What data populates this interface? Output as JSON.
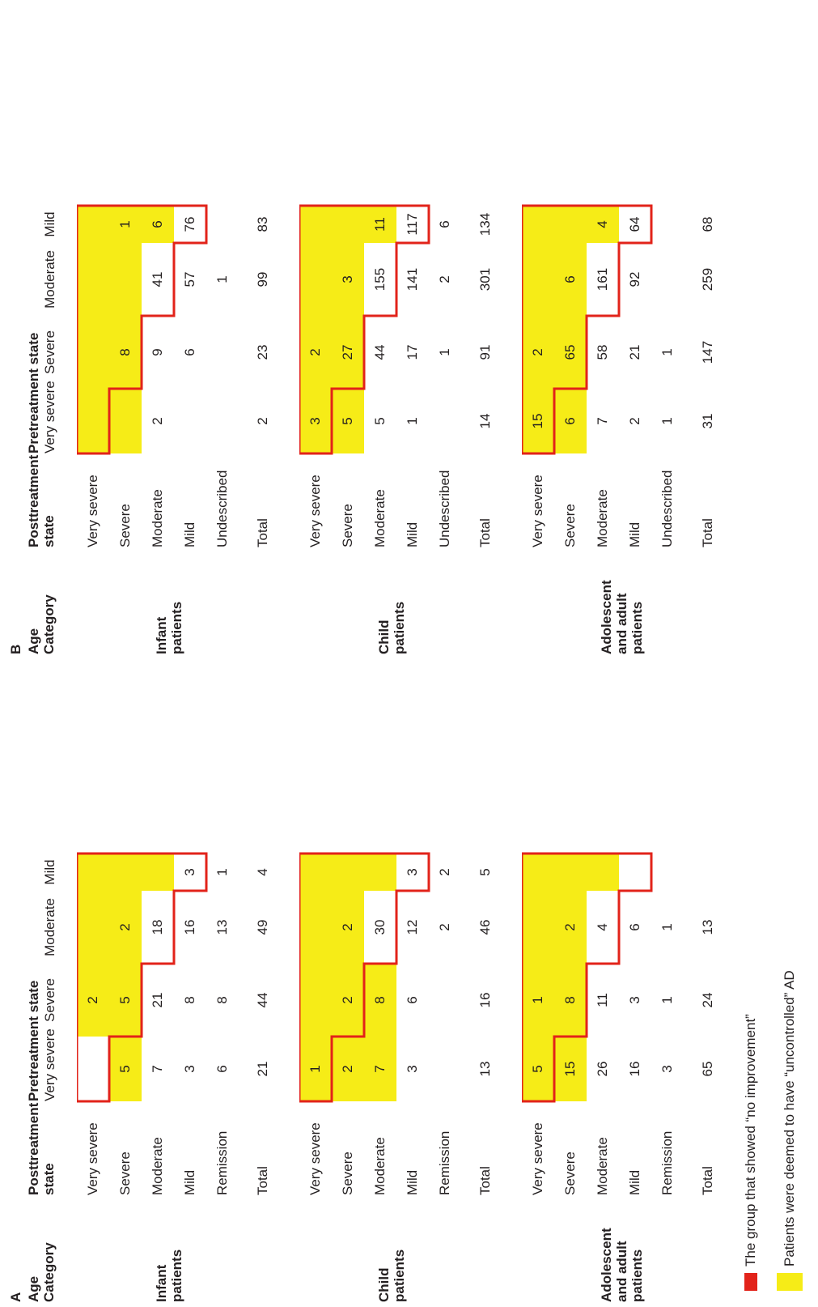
{
  "colors": {
    "yellow": "#f6ec17",
    "red": "#e2231a",
    "text": "#231f20"
  },
  "panel_a": {
    "label": "A",
    "header": {
      "age_category": "Age\nCategory",
      "posttreatment_state": "Posttreatment\nstate",
      "pretreatment_state": "Pretreatment state",
      "columns": [
        "Very severe",
        "Severe",
        "Moderate",
        "Mild"
      ]
    },
    "groups": [
      {
        "name": "Infant\npatients",
        "row_labels": [
          "Very severe",
          "Severe",
          "Moderate",
          "Mild",
          "Remission",
          "Total"
        ],
        "cells": [
          [
            "",
            "2",
            "",
            ""
          ],
          [
            "5",
            "5",
            "2",
            ""
          ],
          [
            "7",
            "21",
            "18",
            ""
          ],
          [
            "3",
            "8",
            "16",
            "3"
          ],
          [
            "6",
            "8",
            "13",
            "1"
          ],
          [
            "21",
            "44",
            "49",
            "4"
          ]
        ]
      },
      {
        "name": "Child\npatients",
        "row_labels": [
          "Very severe",
          "Severe",
          "Moderate",
          "Mild",
          "Remission",
          "Total"
        ],
        "cells": [
          [
            "1",
            "",
            "",
            ""
          ],
          [
            "2",
            "2",
            "2",
            ""
          ],
          [
            "7",
            "8",
            "30",
            ""
          ],
          [
            "3",
            "6",
            "12",
            "3"
          ],
          [
            "",
            "",
            "2",
            "2"
          ],
          [
            "13",
            "16",
            "46",
            "5"
          ]
        ]
      },
      {
        "name": "Adolescent\nand adult\npatients",
        "row_labels": [
          "Very severe",
          "Severe",
          "Moderate",
          "Mild",
          "Remission",
          "Total"
        ],
        "cells": [
          [
            "5",
            "1",
            "",
            ""
          ],
          [
            "15",
            "8",
            "2",
            ""
          ],
          [
            "26",
            "11",
            "4",
            ""
          ],
          [
            "16",
            "3",
            "6",
            ""
          ],
          [
            "3",
            "1",
            "1",
            ""
          ],
          [
            "65",
            "24",
            "13",
            ""
          ]
        ]
      }
    ]
  },
  "panel_b": {
    "label": "B",
    "header": {
      "age_category": "Age\nCategory",
      "posttreatment_state": "Posttreatment\nstate",
      "pretreatment_state": "Pretreatment state",
      "columns": [
        "Very severe",
        "Severe",
        "Moderate",
        "Mild"
      ]
    },
    "groups": [
      {
        "name": "Infant\npatients",
        "row_labels": [
          "Very severe",
          "Severe",
          "Moderate",
          "Mild",
          "Undescribed",
          "Total"
        ],
        "cells": [
          [
            "",
            "",
            "",
            ""
          ],
          [
            "",
            "8",
            "",
            "1"
          ],
          [
            "2",
            "9",
            "41",
            "6"
          ],
          [
            "",
            "6",
            "57",
            "76"
          ],
          [
            "",
            "",
            "1",
            ""
          ],
          [
            "2",
            "23",
            "99",
            "83"
          ]
        ]
      },
      {
        "name": "Child\npatients",
        "row_labels": [
          "Very severe",
          "Severe",
          "Moderate",
          "Mild",
          "Undescribed",
          "Total"
        ],
        "cells": [
          [
            "3",
            "2",
            "",
            ""
          ],
          [
            "5",
            "27",
            "3",
            ""
          ],
          [
            "5",
            "44",
            "155",
            "11"
          ],
          [
            "1",
            "17",
            "141",
            "117"
          ],
          [
            "",
            "1",
            "2",
            "6"
          ],
          [
            "14",
            "91",
            "301",
            "134"
          ]
        ]
      },
      {
        "name": "Adolescent\nand adult\npatients",
        "row_labels": [
          "Very severe",
          "Severe",
          "Moderate",
          "Mild",
          "Undescribed",
          "Total"
        ],
        "cells": [
          [
            "15",
            "2",
            "",
            ""
          ],
          [
            "6",
            "65",
            "6",
            ""
          ],
          [
            "7",
            "58",
            "161",
            "4"
          ],
          [
            "2",
            "21",
            "92",
            "64"
          ],
          [
            "1",
            "1",
            "",
            ""
          ],
          [
            "31",
            "147",
            "259",
            "68"
          ]
        ]
      }
    ]
  },
  "legend": {
    "red_label": "The group that showed “no improvement”",
    "yellow_label": "Patients were deemed to have “uncontrolled” AD"
  }
}
